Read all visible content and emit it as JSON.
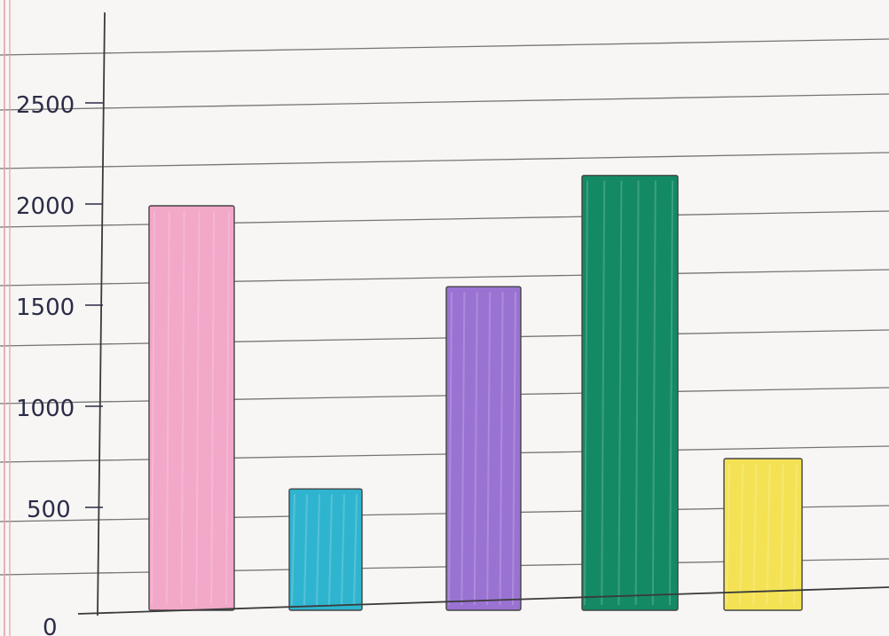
{
  "chart_data": {
    "type": "bar",
    "title": "",
    "xlabel": "",
    "ylabel": "",
    "categories": [
      "",
      "",
      "",
      "",
      ""
    ],
    "values": [
      2000,
      600,
      1600,
      2150,
      750
    ],
    "ylim": [
      0,
      2800
    ],
    "yticks": [
      0,
      500,
      1000,
      1500,
      2000,
      2500
    ],
    "ytick_labels": [
      "0",
      "500",
      "1000",
      "1500",
      "2000",
      "2500"
    ],
    "bar_colors": [
      "#f2a8c8",
      "#2fb4cf",
      "#9a72d2",
      "#138a64",
      "#f4e254"
    ],
    "grid": true,
    "legend": "none"
  },
  "paper": {
    "background": "#f7f6f4",
    "rule_color": "#4a4a4a",
    "margin_color": "#e4a0a8",
    "ink_color": "#2c2c48"
  }
}
